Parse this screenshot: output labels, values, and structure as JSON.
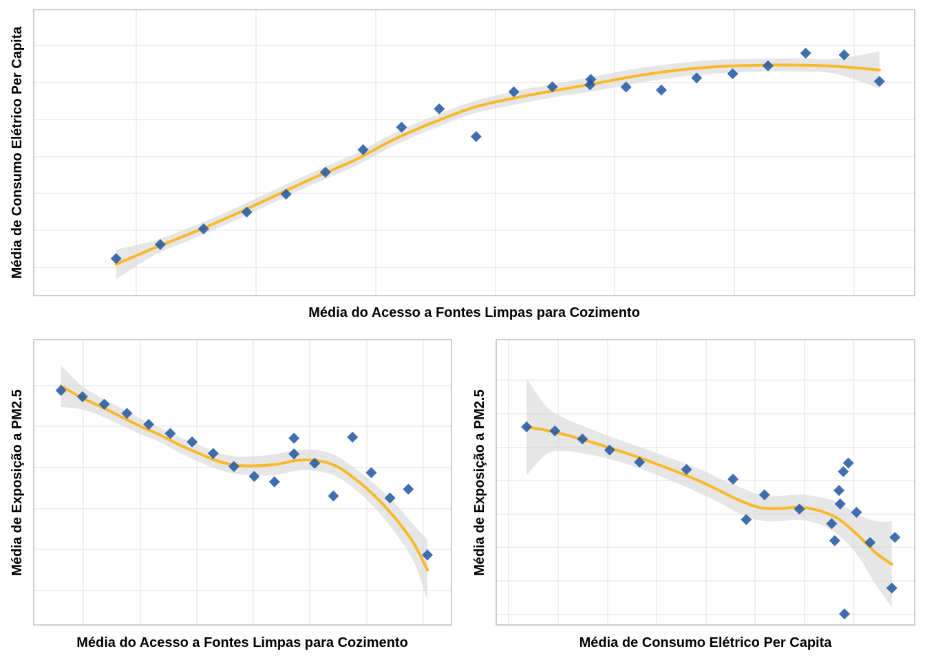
{
  "chart_data": [
    {
      "id": "top",
      "type": "scatter",
      "xlabel": "Média do Acesso a Fontes Limpas para Cozimento",
      "ylabel": "Média de Consumo Elétrico Per Capita",
      "xlim": [
        0,
        1
      ],
      "ylim": [
        0,
        1
      ],
      "grid": true,
      "tick_labels_shown": false,
      "smoother": "loess with confidence band",
      "colors": {
        "points": "#1f55a0",
        "trend": "#f9b928",
        "band": "#d6d6d6"
      },
      "x": [
        0.053,
        0.108,
        0.162,
        0.216,
        0.265,
        0.314,
        0.361,
        0.409,
        0.456,
        0.502,
        0.549,
        0.597,
        0.644,
        0.645,
        0.689,
        0.733,
        0.777,
        0.822,
        0.866,
        0.913,
        0.961,
        1.005
      ],
      "y": [
        0.033,
        0.09,
        0.153,
        0.221,
        0.293,
        0.382,
        0.473,
        0.564,
        0.638,
        0.526,
        0.707,
        0.727,
        0.735,
        0.757,
        0.726,
        0.714,
        0.763,
        0.78,
        0.812,
        0.863,
        0.856,
        0.749
      ],
      "trend": {
        "x": [
          0.053,
          0.1,
          0.15,
          0.2,
          0.25,
          0.3,
          0.35,
          0.4,
          0.45,
          0.5,
          0.55,
          0.6,
          0.65,
          0.7,
          0.75,
          0.8,
          0.85,
          0.9,
          0.95,
          1.005
        ],
        "y": [
          0.01,
          0.075,
          0.14,
          0.21,
          0.285,
          0.36,
          0.43,
          0.515,
          0.585,
          0.645,
          0.682,
          0.712,
          0.74,
          0.77,
          0.793,
          0.808,
          0.814,
          0.815,
          0.81,
          0.795
        ],
        "lower": [
          -0.05,
          0.045,
          0.115,
          0.185,
          0.26,
          0.335,
          0.405,
          0.49,
          0.56,
          0.62,
          0.655,
          0.685,
          0.71,
          0.74,
          0.765,
          0.78,
          0.788,
          0.788,
          0.78,
          0.72
        ],
        "upper": [
          0.07,
          0.105,
          0.165,
          0.235,
          0.31,
          0.385,
          0.455,
          0.54,
          0.61,
          0.67,
          0.709,
          0.739,
          0.77,
          0.8,
          0.821,
          0.836,
          0.84,
          0.842,
          0.84,
          0.87
        ]
      }
    },
    {
      "id": "bottom-left",
      "type": "scatter",
      "xlabel": "Média do Acesso a Fontes Limpas para Cozimento",
      "ylabel": "Média de Exposição a PM2.5",
      "xlim": [
        0,
        1
      ],
      "ylim": [
        0,
        1
      ],
      "grid": true,
      "tick_labels_shown": false,
      "smoother": "loess with confidence band",
      "colors": {
        "points": "#1f55a0",
        "trend": "#f9b928",
        "band": "#d6d6d6"
      },
      "x": [
        0.047,
        0.102,
        0.158,
        0.216,
        0.272,
        0.327,
        0.383,
        0.437,
        0.49,
        0.542,
        0.594,
        0.644,
        0.644,
        0.697,
        0.745,
        0.794,
        0.842,
        0.89,
        0.937,
        0.986
      ],
      "y": [
        0.853,
        0.829,
        0.8,
        0.765,
        0.723,
        0.688,
        0.656,
        0.612,
        0.562,
        0.524,
        0.503,
        0.61,
        0.67,
        0.574,
        0.449,
        0.674,
        0.538,
        0.441,
        0.475,
        0.223
      ],
      "trend": {
        "x": [
          0.047,
          0.1,
          0.15,
          0.2,
          0.25,
          0.3,
          0.35,
          0.4,
          0.45,
          0.5,
          0.55,
          0.6,
          0.65,
          0.7,
          0.75,
          0.8,
          0.85,
          0.9,
          0.95,
          0.986
        ],
        "y": [
          0.87,
          0.825,
          0.79,
          0.753,
          0.716,
          0.683,
          0.645,
          0.612,
          0.582,
          0.566,
          0.565,
          0.57,
          0.585,
          0.585,
          0.565,
          0.515,
          0.45,
          0.37,
          0.27,
          0.165
        ],
        "lower": [
          0.79,
          0.78,
          0.755,
          0.72,
          0.686,
          0.655,
          0.615,
          0.58,
          0.55,
          0.532,
          0.528,
          0.53,
          0.545,
          0.545,
          0.525,
          0.475,
          0.405,
          0.315,
          0.2,
          0.05
        ],
        "upper": [
          0.95,
          0.87,
          0.825,
          0.786,
          0.746,
          0.711,
          0.675,
          0.644,
          0.614,
          0.6,
          0.602,
          0.61,
          0.625,
          0.625,
          0.605,
          0.555,
          0.495,
          0.425,
          0.34,
          0.28
        ]
      }
    },
    {
      "id": "bottom-right",
      "type": "scatter",
      "xlabel": "Média de Consumo Elétrico Per Capita",
      "ylabel": "Média de Exposição a PM2.5",
      "xlim": [
        0,
        1
      ],
      "ylim": [
        0,
        1
      ],
      "grid": true,
      "tick_labels_shown": false,
      "smoother": "loess with confidence band",
      "colors": {
        "points": "#1f55a0",
        "trend": "#f9b928",
        "band": "#d6d6d6"
      },
      "x": [
        0.048,
        0.121,
        0.192,
        0.262,
        0.339,
        0.46,
        0.58,
        0.614,
        0.661,
        0.751,
        0.834,
        0.842,
        0.853,
        0.856,
        0.864,
        0.867,
        0.877,
        0.898,
        0.933,
        0.989,
        0.997
      ],
      "y": [
        0.74,
        0.725,
        0.695,
        0.654,
        0.609,
        0.582,
        0.546,
        0.396,
        0.488,
        0.435,
        0.381,
        0.318,
        0.504,
        0.454,
        0.574,
        0.046,
        0.606,
        0.423,
        0.311,
        0.142,
        0.33
      ],
      "trend": {
        "x": [
          0.048,
          0.1,
          0.15,
          0.2,
          0.25,
          0.3,
          0.35,
          0.4,
          0.45,
          0.5,
          0.55,
          0.6,
          0.65,
          0.7,
          0.75,
          0.8,
          0.85,
          0.9,
          0.95,
          0.989
        ],
        "y": [
          0.74,
          0.727,
          0.71,
          0.69,
          0.668,
          0.645,
          0.62,
          0.593,
          0.565,
          0.535,
          0.5,
          0.465,
          0.44,
          0.437,
          0.442,
          0.43,
          0.4,
          0.34,
          0.27,
          0.23
        ],
        "lower": [
          0.56,
          0.64,
          0.65,
          0.64,
          0.625,
          0.605,
          0.58,
          0.552,
          0.522,
          0.49,
          0.455,
          0.415,
          0.392,
          0.39,
          0.395,
          0.38,
          0.34,
          0.265,
          0.15,
          0.07
        ],
        "upper": [
          0.92,
          0.814,
          0.77,
          0.74,
          0.711,
          0.685,
          0.66,
          0.634,
          0.608,
          0.58,
          0.545,
          0.515,
          0.488,
          0.484,
          0.489,
          0.48,
          0.46,
          0.415,
          0.39,
          0.39
        ]
      }
    }
  ]
}
